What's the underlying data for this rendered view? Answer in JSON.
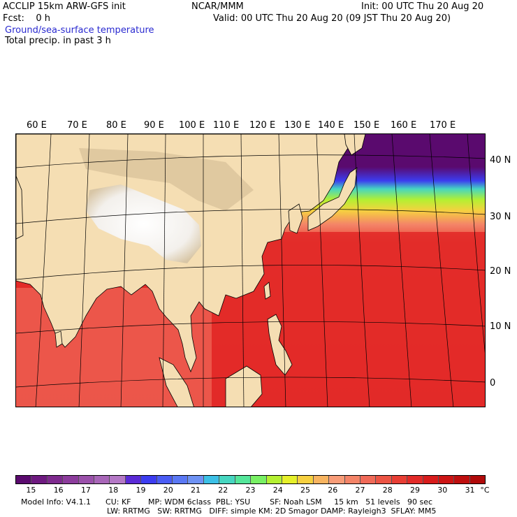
{
  "header": {
    "line1_left": "ACCLIP 15km ARW-GFS init",
    "line1_center": "NCAR/MMM",
    "line1_right": "Init: 00 UTC Thu 20 Aug 20",
    "line2_left": "Fcst:    0 h",
    "line2_right": "Valid: 00 UTC Thu 20 Aug 20 (09 JST Thu 20 Aug 20)",
    "field1": "Ground/sea-surface temperature",
    "field2": "Total precip. in past 3 h"
  },
  "longitude_labels": [
    "60 E",
    "70 E",
    "80 E",
    "90 E",
    "100 E",
    "110 E",
    "120 E",
    "130 E",
    "140 E",
    "150 E",
    "160 E",
    "170 E"
  ],
  "latitude_labels": [
    "40 N",
    "30 N",
    "20 N",
    "10 N",
    "0"
  ],
  "colorbar": {
    "unit": "°C",
    "labels": [
      "15",
      "16",
      "17",
      "18",
      "19",
      "20",
      "21",
      "22",
      "23",
      "24",
      "25",
      "26",
      "27",
      "28",
      "29",
      "30",
      "31"
    ],
    "colors": [
      "#5a0a6e",
      "#6e1a80",
      "#7e2a8e",
      "#8c3c9c",
      "#9a50aa",
      "#a866b8",
      "#b478c6",
      "#5a2ad6",
      "#3c3cf0",
      "#4a5cf4",
      "#5a78f4",
      "#6e92f4",
      "#3cc0e6",
      "#46d6c0",
      "#54e69a",
      "#78f064",
      "#b4f032",
      "#e6f02a",
      "#f6d040",
      "#f8b460",
      "#f89c78",
      "#f48468",
      "#f06a58",
      "#ec5444",
      "#e83e34",
      "#e22a28",
      "#d81c1c",
      "#cc1414",
      "#be0e0e",
      "#b00a0a"
    ]
  },
  "model_info": {
    "line1": "Model Info: V4.1.1      CU: KF       MP: WDM 6class  PBL: YSU        SF: Noah LSM     15 km   51 levels   90 sec",
    "line2": "LW: RRTMG   SW: RRTMG   DIFF: simple KM: 2D Smagor DAMP: Rayleigh3  SFLAY: MM5"
  }
}
